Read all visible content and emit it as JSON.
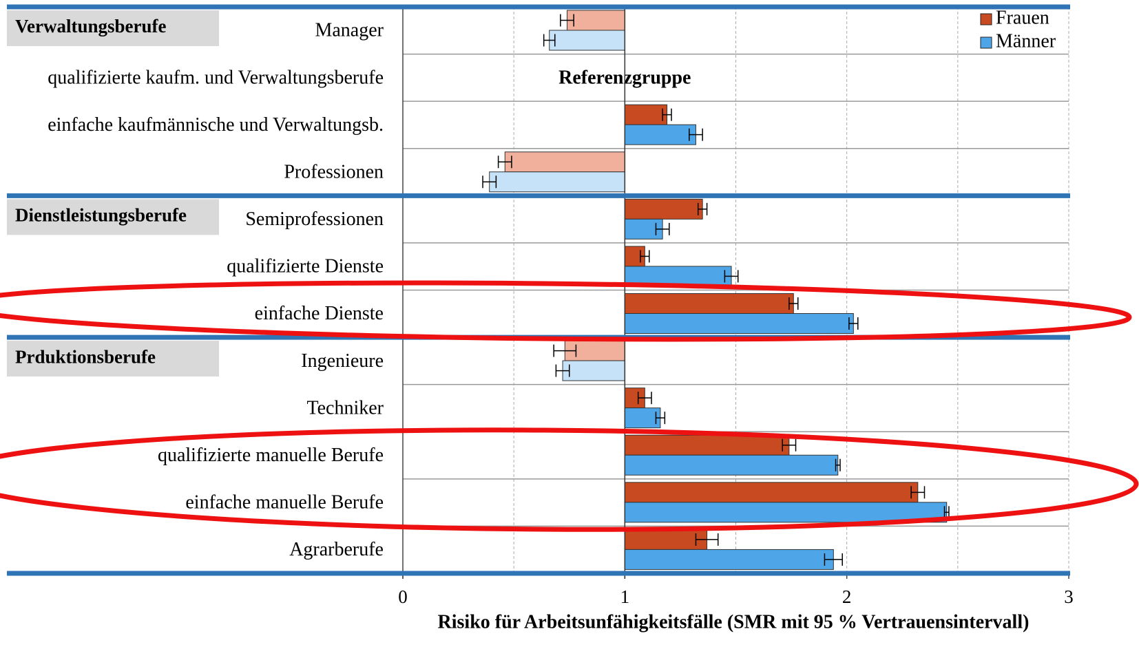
{
  "chart_data": {
    "type": "bar",
    "orientation": "horizontal",
    "xlabel": "Risiko für Arbeitsunfähigkeitsfälle (SMR mit 95 % Vertrauensintervall)",
    "annotation": "Referenzgruppe",
    "reference": 1,
    "groups": [
      {
        "name": "Verwaltungsberufe",
        "categories": [
          "Manager",
          "qualifizierte kaufm. und Verwaltungsberufe",
          "einfache kaufmännische und Verwaltungsb.",
          "Professionen"
        ]
      },
      {
        "name": "Dienstleistungsberufe",
        "categories": [
          "Semiprofessionen",
          "qualifizierte Dienste",
          "einfache Dienste"
        ]
      },
      {
        "name": "Prduktionsberufe",
        "categories": [
          "Ingenieure",
          "Techniker",
          "qualifizierte manuelle Berufe",
          "einfache manuelle Berufe",
          "Agrarberufe"
        ]
      }
    ],
    "series": [
      {
        "name": "Frauen",
        "color": "#c84a20",
        "light_color": "#f0b09b",
        "values": [
          0.74,
          null,
          1.19,
          0.46,
          1.35,
          1.09,
          1.76,
          0.73,
          1.09,
          1.74,
          2.32,
          1.37
        ],
        "errors": [
          0.03,
          null,
          0.02,
          0.03,
          0.02,
          0.02,
          0.02,
          0.05,
          0.03,
          0.03,
          0.03,
          0.05
        ]
      },
      {
        "name": "Männer",
        "color": "#4ea6e8",
        "light_color": "#c6e2f8",
        "values": [
          0.66,
          null,
          1.32,
          0.39,
          1.17,
          1.48,
          2.03,
          0.72,
          1.16,
          1.96,
          2.45,
          1.94
        ],
        "errors": [
          0.025,
          null,
          0.03,
          0.03,
          0.03,
          0.03,
          0.02,
          0.03,
          0.02,
          0.01,
          0.01,
          0.04
        ]
      }
    ],
    "xlim": [
      0,
      3
    ],
    "xticks": [
      0,
      1,
      2,
      3
    ],
    "xgrid": [
      0.5,
      1.5,
      2,
      2.5,
      3
    ],
    "legend": "top-right"
  }
}
